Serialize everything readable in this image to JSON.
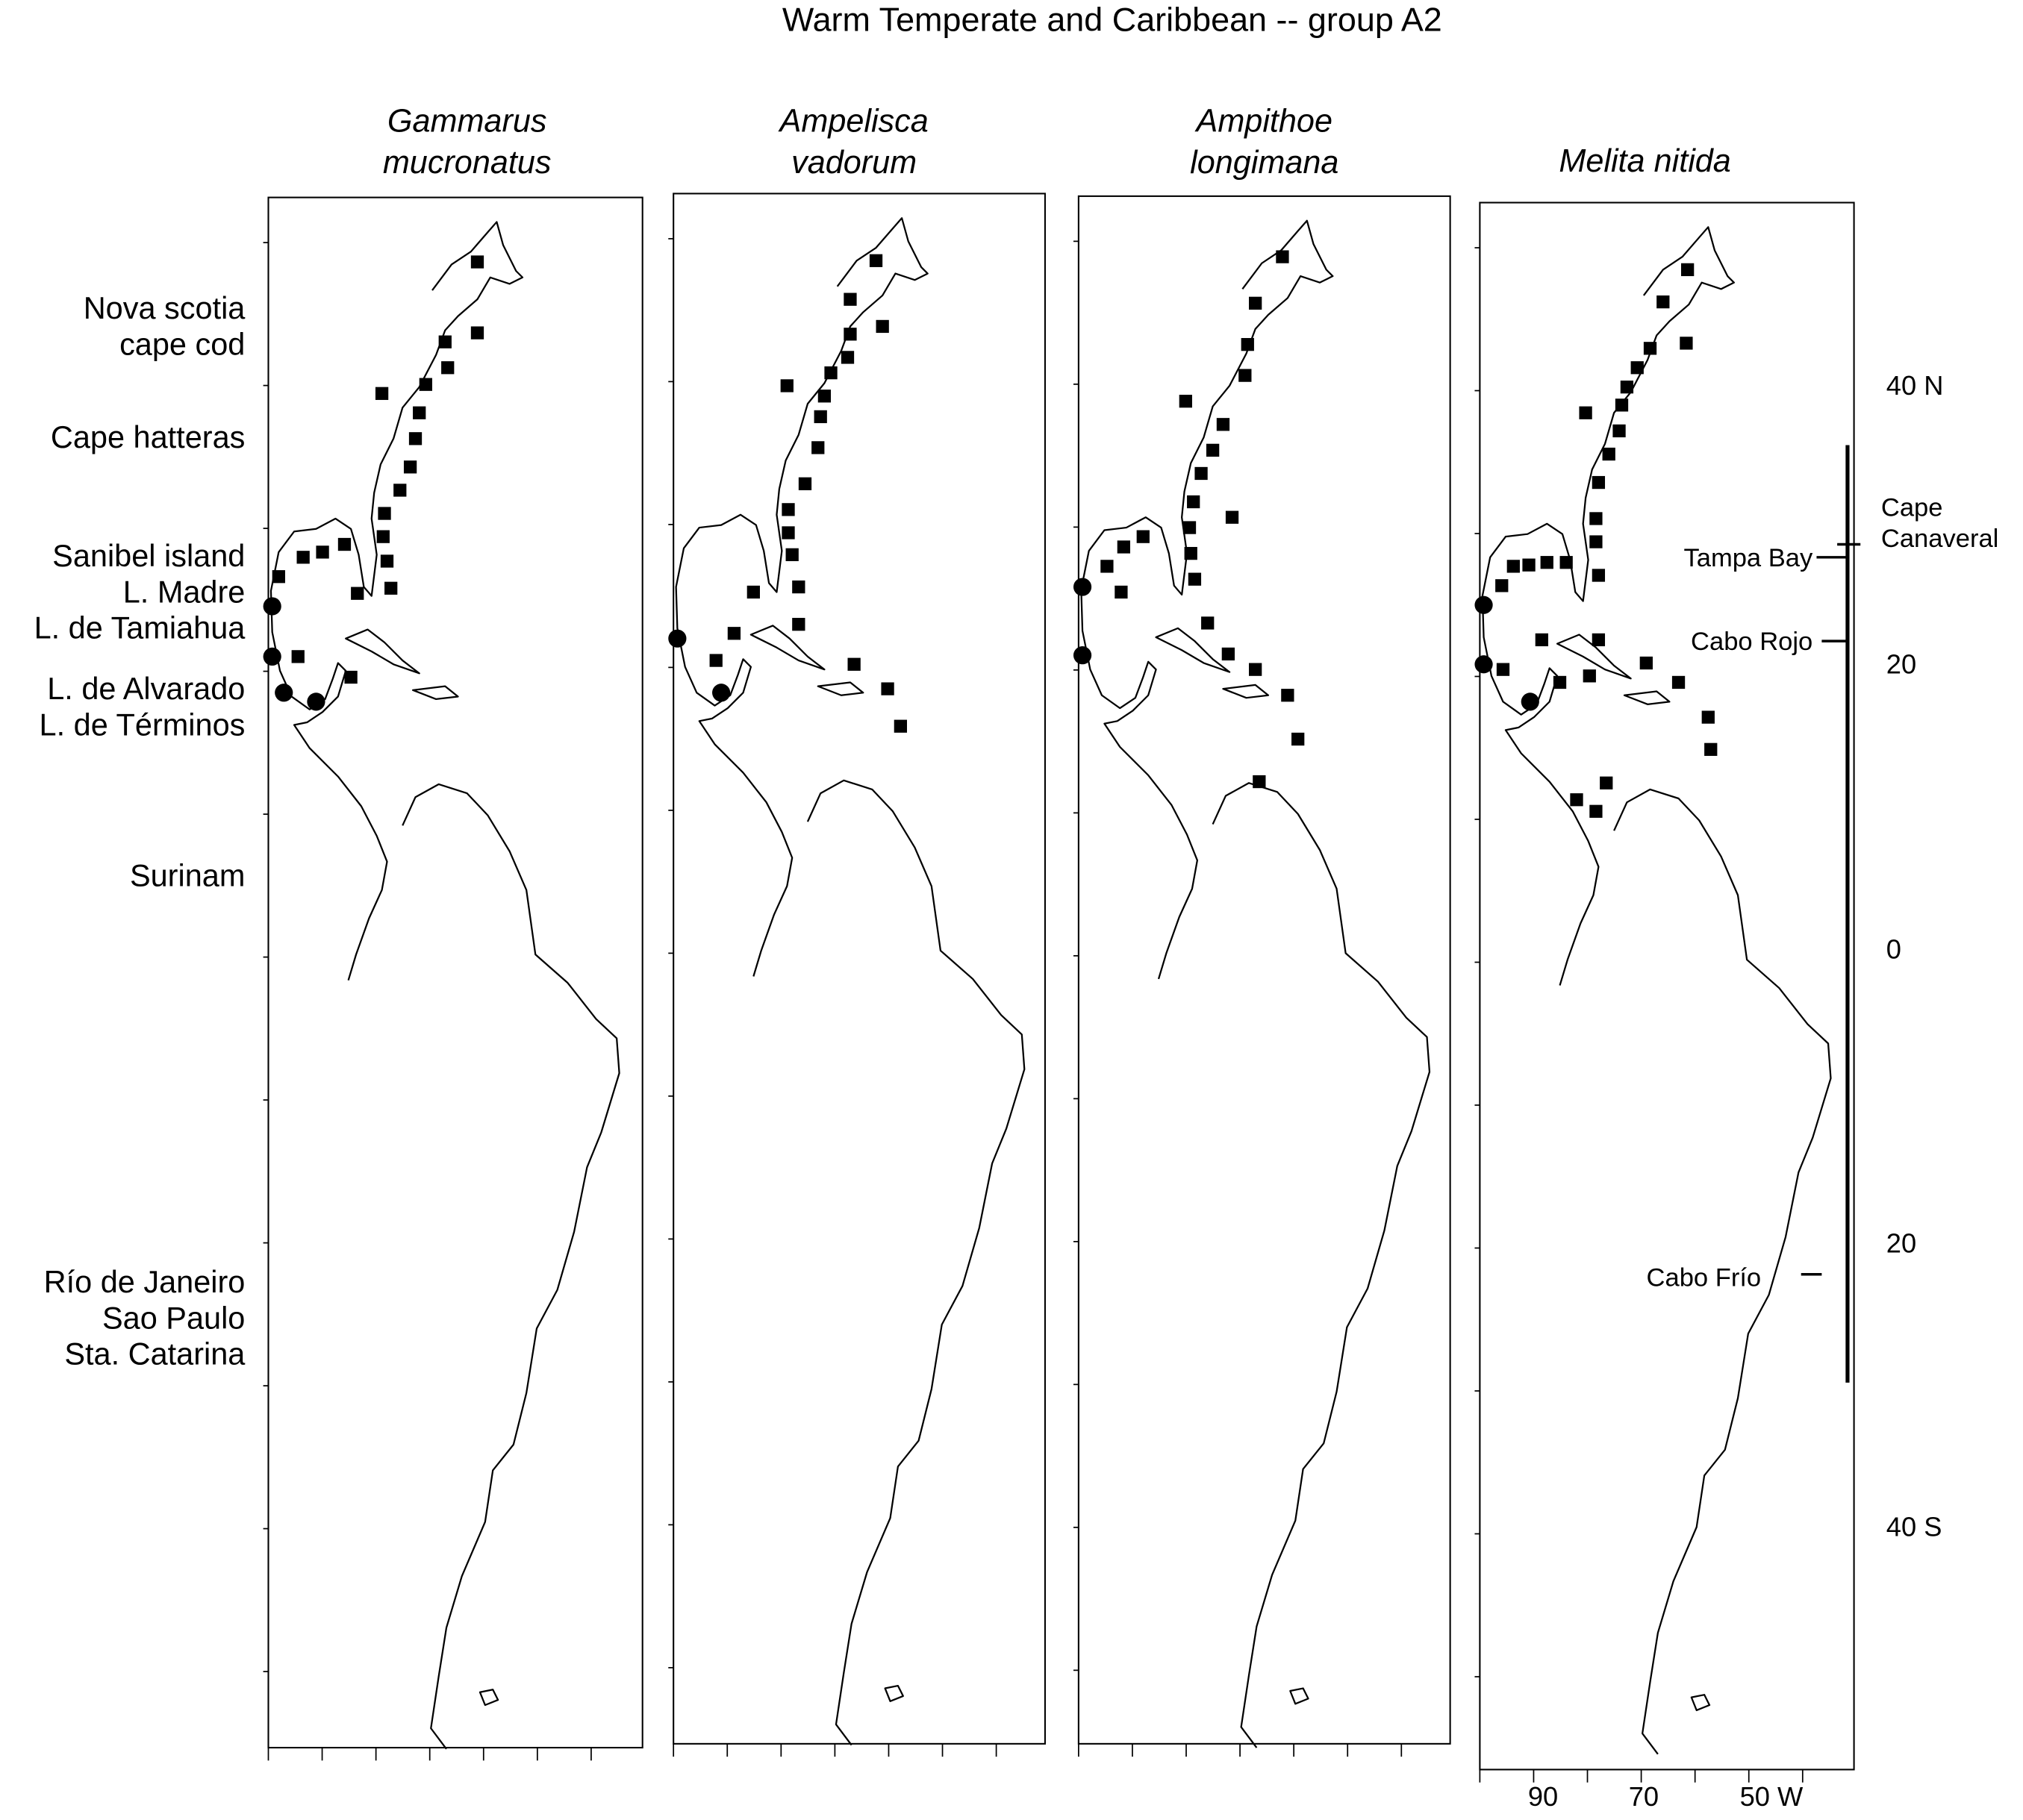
{
  "title": "Warm Temperate and Caribbean -- group A2",
  "panels": [
    {
      "title_lines": [
        "Gammarus",
        "mucronatus"
      ]
    },
    {
      "title_lines": [
        "Ampelisca",
        "vadorum"
      ]
    },
    {
      "title_lines": [
        "Ampithoe",
        "longimana"
      ]
    },
    {
      "title_lines": [
        "Melita nitida"
      ]
    }
  ],
  "regions": [
    "Nova scotia",
    "cape cod",
    "Cape hatteras",
    "Sanibel island",
    "L. Madre",
    "L. de Tamiahua",
    "L. de Alvarado",
    "L. de Términos",
    "Surinam",
    "Río de Janeiro",
    "Sao Paulo",
    "Sta. Catarina"
  ],
  "latitude_labels": [
    "40 N",
    "20",
    "0",
    "20",
    "40 S"
  ],
  "localities": [
    {
      "lines": [
        "Cape",
        "Canaveral"
      ]
    },
    {
      "lines": [
        "Tampa Bay"
      ]
    },
    {
      "lines": [
        "Cabo Rojo"
      ]
    },
    {
      "lines": [
        "Cabo Frío"
      ]
    }
  ],
  "longitude_labels": [
    "90",
    "70",
    "50 W"
  ]
}
